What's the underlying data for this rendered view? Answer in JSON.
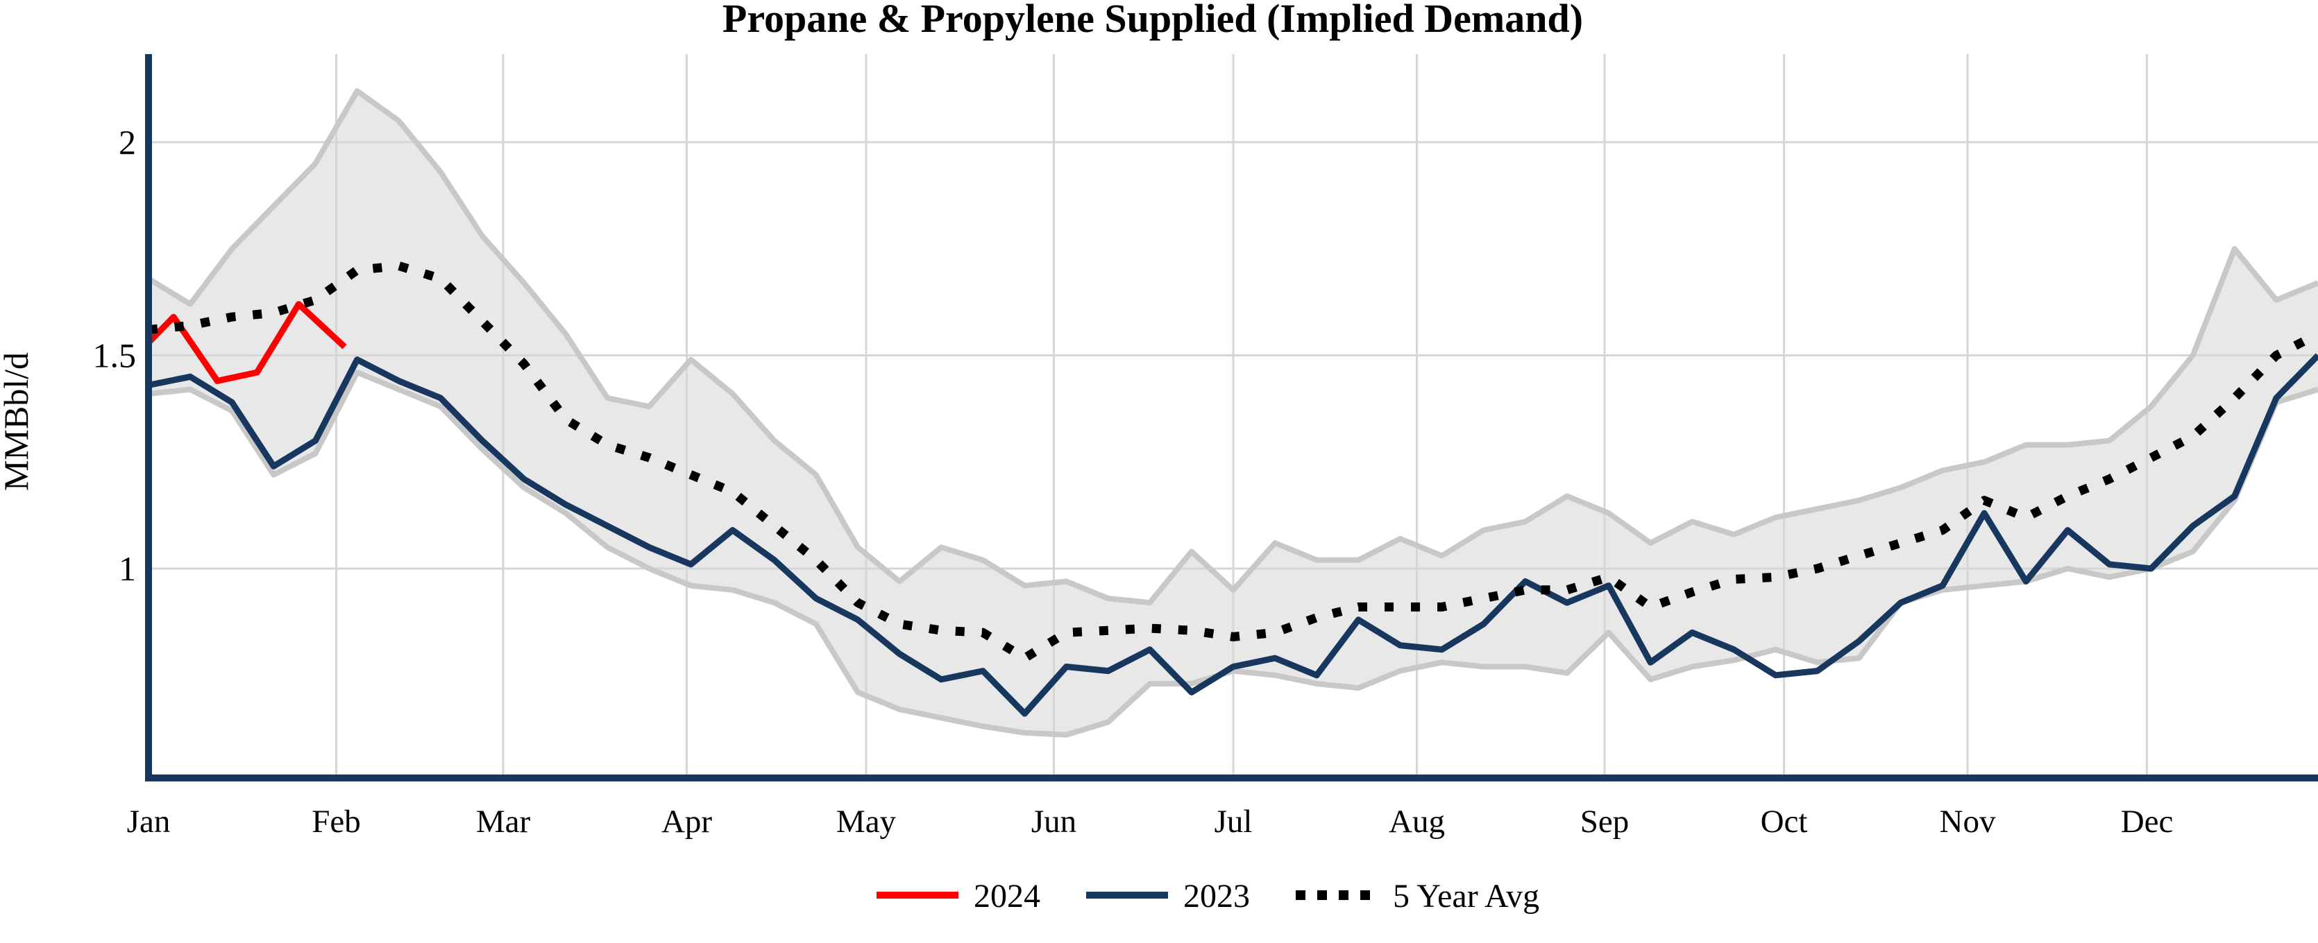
{
  "chart_data": {
    "type": "line",
    "title": "Propane & Propylene Supplied (Implied Demand)",
    "ylabel": "MMBbl/d",
    "x_unit": "week_of_year",
    "n_weeks": 53,
    "ylim": [
      0.51,
      2.21
    ],
    "yticks": [
      {
        "value": 1,
        "label": "1"
      },
      {
        "value": 1.5,
        "label": "1.5"
      },
      {
        "value": 2,
        "label": "2"
      }
    ],
    "xticks": [
      {
        "label": "Jan",
        "week": 1.0,
        "gridline": false
      },
      {
        "label": "Feb",
        "week": 5.5,
        "gridline": true
      },
      {
        "label": "Mar",
        "week": 9.5,
        "gridline": true
      },
      {
        "label": "Apr",
        "week": 13.9,
        "gridline": true
      },
      {
        "label": "May",
        "week": 18.2,
        "gridline": true
      },
      {
        "label": "Jun",
        "week": 22.7,
        "gridline": true
      },
      {
        "label": "Jul",
        "week": 27.0,
        "gridline": true
      },
      {
        "label": "Aug",
        "week": 31.4,
        "gridline": true
      },
      {
        "label": "Sep",
        "week": 35.9,
        "gridline": true
      },
      {
        "label": "Oct",
        "week": 40.2,
        "gridline": true
      },
      {
        "label": "Nov",
        "week": 44.6,
        "gridline": true
      },
      {
        "label": "Dec",
        "week": 48.9,
        "gridline": true
      }
    ],
    "grid_color": "#D6D6D6",
    "axis_color": "#17375E",
    "band": {
      "fill": "#E8E8E8",
      "edge": "#C8C8C8",
      "max": [
        1.68,
        1.62,
        1.75,
        1.85,
        1.95,
        2.12,
        2.05,
        1.93,
        1.78,
        1.67,
        1.55,
        1.4,
        1.38,
        1.49,
        1.41,
        1.3,
        1.22,
        1.05,
        0.97,
        1.05,
        1.02,
        0.96,
        0.97,
        0.93,
        0.92,
        1.04,
        0.95,
        1.06,
        1.02,
        1.02,
        1.07,
        1.03,
        1.09,
        1.11,
        1.17,
        1.13,
        1.06,
        1.11,
        1.08,
        1.12,
        1.14,
        1.16,
        1.19,
        1.23,
        1.25,
        1.29,
        1.29,
        1.3,
        1.38,
        1.5,
        1.75,
        1.63,
        1.67
      ],
      "min": [
        1.41,
        1.42,
        1.37,
        1.22,
        1.27,
        1.46,
        1.42,
        1.38,
        1.28,
        1.19,
        1.13,
        1.05,
        1.0,
        0.96,
        0.95,
        0.92,
        0.87,
        0.71,
        0.67,
        0.65,
        0.63,
        0.615,
        0.61,
        0.64,
        0.73,
        0.73,
        0.76,
        0.75,
        0.73,
        0.72,
        0.76,
        0.78,
        0.77,
        0.77,
        0.755,
        0.85,
        0.74,
        0.77,
        0.785,
        0.81,
        0.78,
        0.79,
        0.92,
        0.95,
        0.96,
        0.97,
        1.0,
        0.98,
        1.0,
        1.04,
        1.16,
        1.39,
        1.42
      ]
    },
    "series": [
      {
        "name": "2024",
        "color": "#FF0000",
        "style": "solid",
        "x": [
          1.0,
          1.6,
          2.65,
          3.6,
          4.6,
          5.7
        ],
        "values": [
          1.53,
          1.59,
          1.44,
          1.46,
          1.62,
          1.52
        ]
      },
      {
        "name": "2023",
        "color": "#17375E",
        "style": "solid",
        "values": [
          1.43,
          1.45,
          1.39,
          1.24,
          1.3,
          1.49,
          1.44,
          1.4,
          1.3,
          1.21,
          1.15,
          1.1,
          1.05,
          1.01,
          1.09,
          1.02,
          0.93,
          0.88,
          0.8,
          0.74,
          0.76,
          0.66,
          0.77,
          0.76,
          0.81,
          0.71,
          0.77,
          0.79,
          0.75,
          0.88,
          0.82,
          0.81,
          0.87,
          0.97,
          0.92,
          0.96,
          0.78,
          0.85,
          0.81,
          0.75,
          0.76,
          0.83,
          0.92,
          0.96,
          1.13,
          0.97,
          1.09,
          1.01,
          1.0,
          1.1,
          1.17,
          1.4,
          1.5
        ]
      },
      {
        "name": "5 Year Avg",
        "color": "#000000",
        "style": "dotted",
        "values": [
          1.56,
          1.57,
          1.59,
          1.6,
          1.63,
          1.7,
          1.71,
          1.68,
          1.58,
          1.48,
          1.35,
          1.29,
          1.26,
          1.22,
          1.18,
          1.1,
          1.02,
          0.92,
          0.87,
          0.855,
          0.85,
          0.79,
          0.85,
          0.855,
          0.86,
          0.855,
          0.84,
          0.85,
          0.885,
          0.91,
          0.91,
          0.91,
          0.93,
          0.95,
          0.95,
          0.98,
          0.91,
          0.945,
          0.975,
          0.98,
          1.0,
          1.03,
          1.06,
          1.09,
          1.16,
          1.12,
          1.17,
          1.21,
          1.26,
          1.31,
          1.4,
          1.5,
          1.55
        ]
      }
    ],
    "legend": {
      "items": [
        {
          "label": "2024",
          "color": "#FF0000",
          "style": "solid"
        },
        {
          "label": "2023",
          "color": "#17375E",
          "style": "solid"
        },
        {
          "label": "5 Year Avg",
          "color": "#000000",
          "style": "dotted"
        }
      ]
    }
  }
}
